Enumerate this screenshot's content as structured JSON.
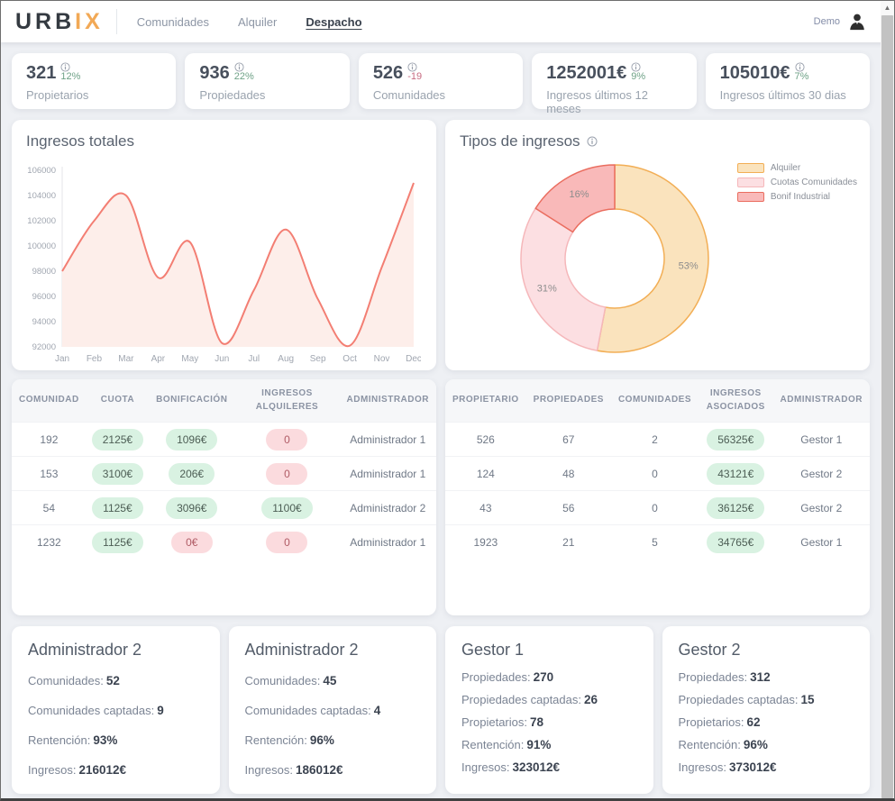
{
  "navbar": {
    "logo_primary": "URB",
    "logo_accent": "IX",
    "items": [
      {
        "label": "Comunidades",
        "active": false
      },
      {
        "label": "Alquiler",
        "active": false
      },
      {
        "label": "Despacho",
        "active": true
      }
    ],
    "user_label": "Demo"
  },
  "icons": {
    "scroll_up": "▲"
  },
  "kpis": [
    {
      "value": "321",
      "delta": "12%",
      "direction": "up",
      "label": "Propietarios"
    },
    {
      "value": "936",
      "delta": "22%",
      "direction": "up",
      "label": "Propiedades"
    },
    {
      "value": "526",
      "delta": "-19",
      "direction": "down",
      "label": "Comunidades"
    },
    {
      "value": "1252001€",
      "delta": "9%",
      "direction": "up",
      "label": "Ingresos últimos 12 meses"
    },
    {
      "value": "105010€",
      "delta": "7%",
      "direction": "up",
      "label": "Ingresos últimos 30 dias"
    }
  ],
  "chart_data": [
    {
      "type": "line",
      "title": "Ingresos totales",
      "x": [
        "Jan",
        "Feb",
        "Mar",
        "Apr",
        "May",
        "Jun",
        "Jul",
        "Aug",
        "Sep",
        "Oct",
        "Nov",
        "Dec"
      ],
      "series": [
        {
          "name": "Ingresos",
          "values": [
            98000,
            102000,
            104000,
            97500,
            100300,
            92300,
            96500,
            101300,
            95800,
            92100,
            98300,
            105000
          ]
        }
      ],
      "ylim": [
        92000,
        106000
      ],
      "ytick_step": 2000,
      "grid": false,
      "line_color": "#f37e73",
      "fill_color": "#fdeeea"
    },
    {
      "type": "pie",
      "donut": true,
      "title": "Tipos de ingresos",
      "legend_position": "top-right",
      "slices": [
        {
          "label": "Alquiler",
          "value": 53,
          "pct_label": "53%",
          "fill": "#fae3bd",
          "stroke": "#f2ae55"
        },
        {
          "label": "Cuotas Comunidades",
          "value": 31,
          "pct_label": "31%",
          "fill": "#fcdfe2",
          "stroke": "#f5b7ba"
        },
        {
          "label": "Bonif Industrial",
          "value": 16,
          "pct_label": "16%",
          "fill": "#f9b9b9",
          "stroke": "#ea6d5f"
        }
      ]
    }
  ],
  "tables": {
    "left": {
      "headers": [
        "COMUNIDAD",
        "CUOTA",
        "BONIFICACIÓN",
        "INGRESOS ALQUILERES",
        "ADMINISTRADOR"
      ],
      "rows": [
        [
          {
            "t": "192"
          },
          {
            "t": "2125€",
            "pill": "green"
          },
          {
            "t": "1096€",
            "pill": "green"
          },
          {
            "t": "0",
            "pill": "red"
          },
          {
            "t": "Administrador 1"
          }
        ],
        [
          {
            "t": "153"
          },
          {
            "t": "3100€",
            "pill": "green"
          },
          {
            "t": "206€",
            "pill": "green"
          },
          {
            "t": "0",
            "pill": "red"
          },
          {
            "t": "Administrador 1"
          }
        ],
        [
          {
            "t": "54"
          },
          {
            "t": "1125€",
            "pill": "green"
          },
          {
            "t": "3096€",
            "pill": "green"
          },
          {
            "t": "1100€",
            "pill": "green"
          },
          {
            "t": "Administrador 2"
          }
        ],
        [
          {
            "t": "1232"
          },
          {
            "t": "1125€",
            "pill": "green"
          },
          {
            "t": "0€",
            "pill": "red"
          },
          {
            "t": "0",
            "pill": "red"
          },
          {
            "t": "Administrador 1"
          }
        ]
      ]
    },
    "right": {
      "headers": [
        "PROPIETARIO",
        "PROPIEDADES",
        "COMUNIDADES",
        "INGRESOS ASOCIADOS",
        "ADMINISTRADOR"
      ],
      "rows": [
        [
          {
            "t": "526"
          },
          {
            "t": "67"
          },
          {
            "t": "2"
          },
          {
            "t": "56325€",
            "pill": "green"
          },
          {
            "t": "Gestor 1"
          }
        ],
        [
          {
            "t": "124"
          },
          {
            "t": "48"
          },
          {
            "t": "0"
          },
          {
            "t": "43121€",
            "pill": "green"
          },
          {
            "t": "Gestor 2"
          }
        ],
        [
          {
            "t": "43"
          },
          {
            "t": "56"
          },
          {
            "t": "0"
          },
          {
            "t": "36125€",
            "pill": "green"
          },
          {
            "t": "Gestor 2"
          }
        ],
        [
          {
            "t": "1923"
          },
          {
            "t": "21"
          },
          {
            "t": "5"
          },
          {
            "t": "34765€",
            "pill": "green"
          },
          {
            "t": "Gestor 1"
          }
        ]
      ]
    }
  },
  "manager_cards": [
    {
      "title": "Administrador 2",
      "lines": [
        {
          "label": "Comunidades:",
          "value": "52"
        },
        {
          "label": "Comunidades captadas:",
          "value": "9"
        },
        {
          "label": "Rentención:",
          "value": "93%"
        },
        {
          "label": "Ingresos:",
          "value": "216012€"
        }
      ]
    },
    {
      "title": "Administrador 2",
      "lines": [
        {
          "label": "Comunidades:",
          "value": "45"
        },
        {
          "label": "Comunidades captadas:",
          "value": "4"
        },
        {
          "label": "Rentención:",
          "value": "96%"
        },
        {
          "label": "Ingresos:",
          "value": "186012€"
        }
      ]
    },
    {
      "title": "Gestor 1",
      "lines": [
        {
          "label": "Propiedades:",
          "value": "270"
        },
        {
          "label": "Propiedades captadas:",
          "value": "26"
        },
        {
          "label": "Propietarios:",
          "value": "78"
        },
        {
          "label": "Rentención:",
          "value": "91%"
        },
        {
          "label": "Ingresos:",
          "value": "323012€"
        }
      ]
    },
    {
      "title": "Gestor 2",
      "lines": [
        {
          "label": "Propiedades:",
          "value": "312"
        },
        {
          "label": "Propiedades captadas:",
          "value": "15"
        },
        {
          "label": "Propietarios:",
          "value": "62"
        },
        {
          "label": "Rentención:",
          "value": "96%"
        },
        {
          "label": "Ingresos:",
          "value": "373012€"
        }
      ]
    }
  ],
  "colors": {
    "accent_orange": "#f2a956",
    "line_salmon": "#f37e73",
    "pill_green_bg": "#d9f2e2",
    "pill_red_bg": "#fbdbde",
    "delta_up": "#6fa287",
    "delta_down": "#c76b80",
    "page_bg": "#eef0f4"
  }
}
